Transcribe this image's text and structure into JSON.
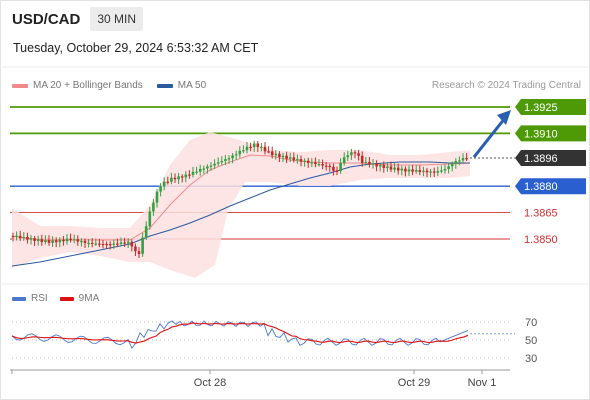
{
  "header": {
    "pair": "USD/CAD",
    "timeframe": "30 MIN",
    "timestamp": "Tuesday, October 29, 2024 6:53:32 AM CET",
    "credit": "Research © 2024 Trading Central"
  },
  "legend": {
    "ma20_label": "MA 20 + Bollinger Bands",
    "ma20_color": "#f08a8a",
    "ma50_label": "MA 50",
    "ma50_color": "#2a5aa0"
  },
  "rsi_legend": {
    "rsi_label": "RSI",
    "rsi_color": "#4a78d0",
    "ma_label": "9MA",
    "ma_color": "#dd1111"
  },
  "colors": {
    "candle_up": "#33a044",
    "candle_down": "#c62828",
    "resistance": "#4e9a06",
    "pivot": "#2a5fd0",
    "support": "#d03030",
    "last": "#333333",
    "arrow": "#2a5fb0",
    "band": "#fde0e0"
  },
  "chart_data": {
    "type": "candlestick",
    "price_range": [
      1.3825,
      1.3935
    ],
    "x_labels": [
      "Oct 28",
      "Oct 29",
      "Nov 1"
    ],
    "levels": [
      {
        "label": "1.3925",
        "value": 1.3925,
        "kind": "resistance"
      },
      {
        "label": "1.3910",
        "value": 1.391,
        "kind": "resistance"
      },
      {
        "label": "1.3896",
        "value": 1.3896,
        "kind": "last"
      },
      {
        "label": "1.3880",
        "value": 1.388,
        "kind": "pivot"
      },
      {
        "label": "1.3865",
        "value": 1.3865,
        "kind": "support"
      },
      {
        "label": "1.3850",
        "value": 1.385,
        "kind": "support"
      }
    ],
    "rsi_range": [
      20,
      80
    ],
    "rsi_levels": [
      {
        "label": "70",
        "value": 70
      },
      {
        "label": "50",
        "value": 50
      },
      {
        "label": "30",
        "value": 30
      }
    ]
  }
}
